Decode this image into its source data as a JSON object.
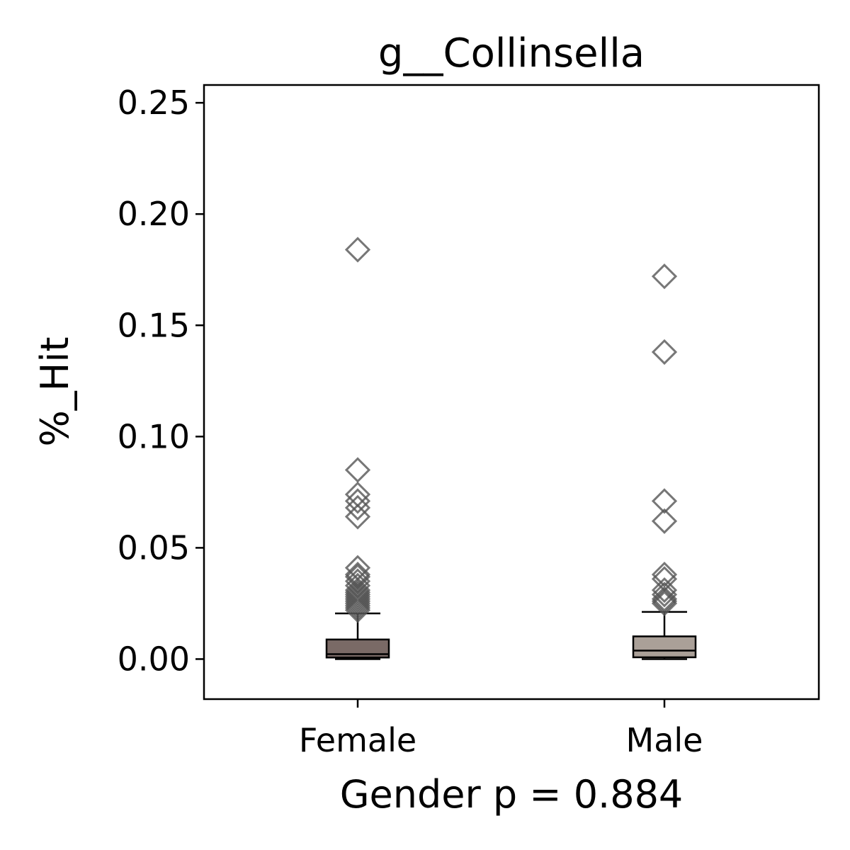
{
  "chart_data": {
    "type": "box",
    "title": "g__Collinsella",
    "xlabel": "Gender p = 0.884",
    "ylabel": "%_Hit",
    "ylim": [
      -0.018,
      0.258
    ],
    "yticks": [
      0.0,
      0.05,
      0.1,
      0.15,
      0.2,
      0.25
    ],
    "ytick_labels": [
      "0.00",
      "0.05",
      "0.10",
      "0.15",
      "0.20",
      "0.25"
    ],
    "categories": [
      "Female",
      "Male"
    ],
    "grid": false,
    "legend": "none",
    "boxes": [
      {
        "category": "Female",
        "color": "#7a6a66",
        "whisker_low": 0.0,
        "q1": 0.0007,
        "median": 0.0022,
        "q3": 0.0088,
        "whisker_high": 0.0205,
        "outliers": [
          0.184,
          0.085,
          0.074,
          0.071,
          0.068,
          0.064,
          0.041,
          0.038,
          0.037,
          0.035,
          0.033,
          0.031,
          0.03,
          0.029,
          0.028,
          0.027,
          0.026,
          0.025,
          0.024,
          0.023,
          0.022
        ]
      },
      {
        "category": "Male",
        "color": "#aaa098",
        "whisker_low": 0.0,
        "q1": 0.0008,
        "median": 0.0038,
        "q3": 0.0102,
        "whisker_high": 0.0212,
        "outliers": [
          0.172,
          0.138,
          0.071,
          0.062,
          0.038,
          0.036,
          0.031,
          0.029,
          0.027,
          0.026,
          0.025
        ]
      }
    ],
    "marker": "diamond",
    "marker_color": "#555555"
  }
}
